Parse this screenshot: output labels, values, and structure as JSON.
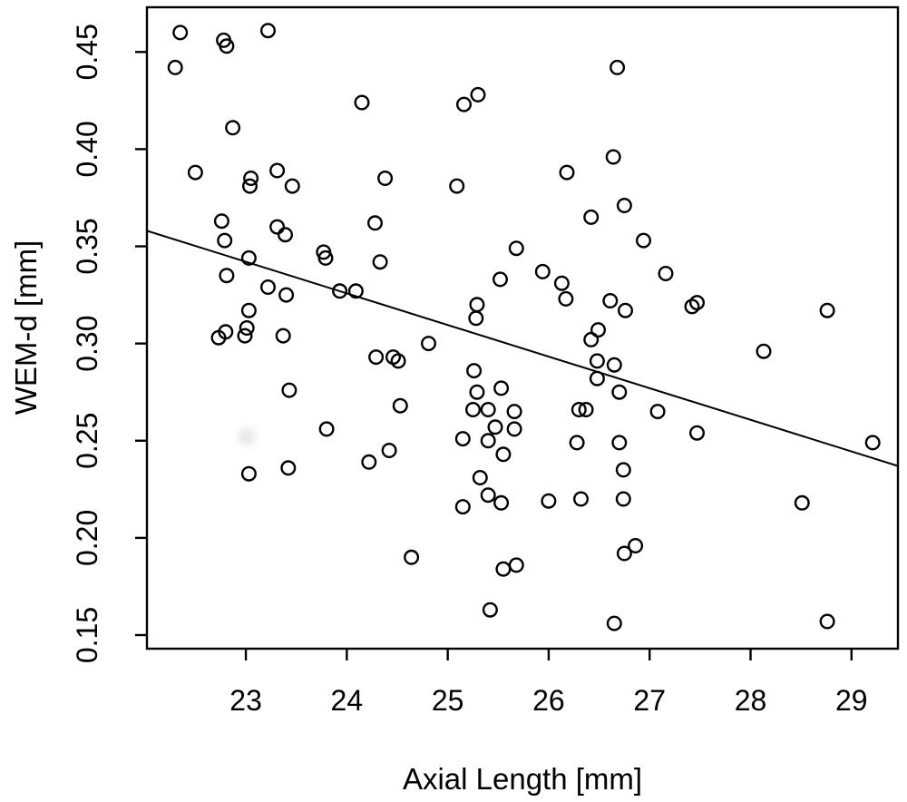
{
  "figure": {
    "background": "#ffffff",
    "frame_color": "#000000"
  },
  "chart_data": {
    "type": "scatter",
    "title": "",
    "xlabel": "Axial Length [mm]",
    "ylabel": "WEM-d [mm]",
    "xlim": [
      22.02,
      29.46
    ],
    "ylim": [
      0.143,
      0.473
    ],
    "xticks": [
      23,
      24,
      25,
      26,
      27,
      28,
      29
    ],
    "xtick_labels": [
      "23",
      "24",
      "25",
      "26",
      "27",
      "28",
      "29"
    ],
    "yticks": [
      0.15,
      0.2,
      0.25,
      0.3,
      0.35,
      0.4,
      0.45
    ],
    "ytick_labels": [
      "0.15",
      "0.20",
      "0.25",
      "0.30",
      "0.35",
      "0.40",
      "0.45"
    ],
    "grid": false,
    "legend": "none",
    "marker": "open-circle",
    "marker_color": "#000000",
    "line_color": "#000000",
    "regression_line": {
      "x": [
        22.02,
        29.46
      ],
      "y": [
        0.358,
        0.237
      ]
    },
    "points": [
      [
        22.35,
        0.46
      ],
      [
        22.78,
        0.456
      ],
      [
        22.81,
        0.453
      ],
      [
        23.22,
        0.461
      ],
      [
        22.3,
        0.442
      ],
      [
        24.15,
        0.424
      ],
      [
        22.87,
        0.411
      ],
      [
        22.5,
        0.388
      ],
      [
        23.05,
        0.385
      ],
      [
        23.04,
        0.381
      ],
      [
        23.31,
        0.389
      ],
      [
        23.46,
        0.381
      ],
      [
        24.38,
        0.385
      ],
      [
        22.76,
        0.363
      ],
      [
        23.31,
        0.36
      ],
      [
        23.39,
        0.356
      ],
      [
        24.28,
        0.362
      ],
      [
        22.79,
        0.353
      ],
      [
        23.03,
        0.344
      ],
      [
        23.77,
        0.347
      ],
      [
        23.79,
        0.344
      ],
      [
        24.33,
        0.342
      ],
      [
        22.81,
        0.335
      ],
      [
        23.22,
        0.329
      ],
      [
        23.4,
        0.325
      ],
      [
        23.93,
        0.327
      ],
      [
        24.09,
        0.327
      ],
      [
        23.03,
        0.317
      ],
      [
        23.01,
        0.308
      ],
      [
        22.99,
        0.304
      ],
      [
        22.73,
        0.303
      ],
      [
        22.8,
        0.306
      ],
      [
        23.37,
        0.304
      ],
      [
        24.29,
        0.293
      ],
      [
        24.46,
        0.293
      ],
      [
        24.51,
        0.291
      ],
      [
        23.43,
        0.276
      ],
      [
        24.53,
        0.268
      ],
      [
        23.8,
        0.256
      ],
      [
        23.03,
        0.233
      ],
      [
        23.42,
        0.236
      ],
      [
        24.22,
        0.239
      ],
      [
        24.42,
        0.245
      ],
      [
        24.64,
        0.19
      ],
      [
        26.68,
        0.442
      ],
      [
        25.3,
        0.428
      ],
      [
        25.16,
        0.423
      ],
      [
        26.64,
        0.396
      ],
      [
        26.18,
        0.388
      ],
      [
        25.09,
        0.381
      ],
      [
        26.75,
        0.371
      ],
      [
        26.94,
        0.353
      ],
      [
        25.68,
        0.349
      ],
      [
        25.52,
        0.333
      ],
      [
        25.94,
        0.337
      ],
      [
        26.13,
        0.331
      ],
      [
        26.17,
        0.323
      ],
      [
        26.61,
        0.322
      ],
      [
        26.76,
        0.317
      ],
      [
        25.29,
        0.32
      ],
      [
        25.28,
        0.313
      ],
      [
        24.81,
        0.3
      ],
      [
        26.49,
        0.307
      ],
      [
        26.42,
        0.302
      ],
      [
        26.48,
        0.291
      ],
      [
        26.65,
        0.289
      ],
      [
        26.48,
        0.282
      ],
      [
        26.7,
        0.275
      ],
      [
        25.26,
        0.286
      ],
      [
        25.29,
        0.275
      ],
      [
        25.53,
        0.277
      ],
      [
        25.25,
        0.266
      ],
      [
        25.4,
        0.266
      ],
      [
        25.66,
        0.265
      ],
      [
        26.3,
        0.266
      ],
      [
        26.37,
        0.266
      ],
      [
        25.47,
        0.257
      ],
      [
        25.66,
        0.256
      ],
      [
        27.08,
        0.265
      ],
      [
        25.15,
        0.251
      ],
      [
        25.4,
        0.25
      ],
      [
        25.55,
        0.243
      ],
      [
        26.28,
        0.249
      ],
      [
        26.7,
        0.249
      ],
      [
        25.32,
        0.231
      ],
      [
        25.4,
        0.222
      ],
      [
        25.53,
        0.218
      ],
      [
        25.15,
        0.216
      ],
      [
        26.0,
        0.219
      ],
      [
        26.32,
        0.22
      ],
      [
        26.74,
        0.22
      ],
      [
        26.74,
        0.235
      ],
      [
        25.55,
        0.184
      ],
      [
        25.68,
        0.186
      ],
      [
        26.75,
        0.192
      ],
      [
        26.86,
        0.196
      ],
      [
        25.42,
        0.163
      ],
      [
        26.65,
        0.156
      ],
      [
        26.42,
        0.365
      ],
      [
        27.16,
        0.336
      ],
      [
        27.42,
        0.319
      ],
      [
        27.47,
        0.321
      ],
      [
        28.76,
        0.317
      ],
      [
        28.13,
        0.296
      ],
      [
        27.47,
        0.254
      ],
      [
        29.21,
        0.249
      ],
      [
        28.51,
        0.218
      ],
      [
        28.76,
        0.157
      ]
    ],
    "faint_artifact_point": {
      "x": 23.01,
      "y": 0.252,
      "color": "#e9e9e9"
    }
  }
}
